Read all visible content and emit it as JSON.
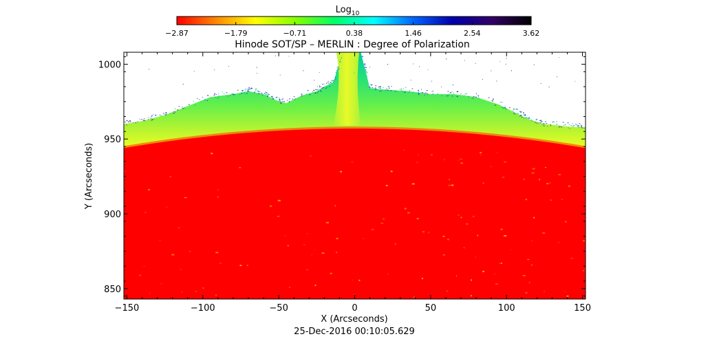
{
  "chart_data": {
    "type": "heatmap",
    "title": "Hinode SOT/SP – MERLIN : Degree of Polarization",
    "xlabel": "X (Arcseconds)",
    "ylabel": "Y (Arcseconds)",
    "xlim": [
      -152,
      152
    ],
    "ylim": [
      843,
      1008
    ],
    "x_ticks": [
      -150,
      -100,
      -50,
      0,
      50,
      100,
      150
    ],
    "x_tick_labels": [
      "−150",
      "−100",
      "−50",
      "0",
      "50",
      "100",
      "150"
    ],
    "y_ticks": [
      850,
      900,
      950,
      1000
    ],
    "y_tick_labels": [
      "850",
      "900",
      "950",
      "1000"
    ],
    "colorbar": {
      "label": "Log",
      "label_subscript": "10",
      "range": [
        -2.87,
        3.62
      ],
      "ticks": [
        -2.87,
        -1.79,
        -0.71,
        0.38,
        1.46,
        2.54,
        3.62
      ],
      "tick_labels": [
        "−2.87",
        "−1.79",
        "−0.71",
        "0.38",
        "1.46",
        "2.54",
        "3.62"
      ],
      "colormap": [
        "#ff0000",
        "#ff8800",
        "#ffff00",
        "#88ff00",
        "#00ff66",
        "#00ffff",
        "#0066ff",
        "#0000aa",
        "#330066",
        "#000000"
      ]
    },
    "limb": {
      "y_at_x_min": 944,
      "y_at_x_max": 944,
      "y_at_center": 957
    },
    "outer_edge_profile": {
      "x": [
        -152,
        -140,
        -125,
        -110,
        -95,
        -80,
        -70,
        -60,
        -52,
        -45,
        -35,
        -25,
        -20,
        -14,
        -8,
        0,
        4,
        10,
        20,
        35,
        50,
        65,
        80,
        95,
        105,
        115,
        125,
        135,
        143,
        152
      ],
      "y": [
        960,
        962,
        966,
        972,
        978,
        980,
        982,
        980,
        976,
        974,
        979,
        982,
        985,
        988,
        1008,
        1008,
        1008,
        984,
        983,
        982,
        980,
        980,
        978,
        973,
        968,
        963,
        960,
        959,
        958,
        958
      ]
    },
    "timestamp": "25-Dec-2016 00:10:05.629"
  }
}
